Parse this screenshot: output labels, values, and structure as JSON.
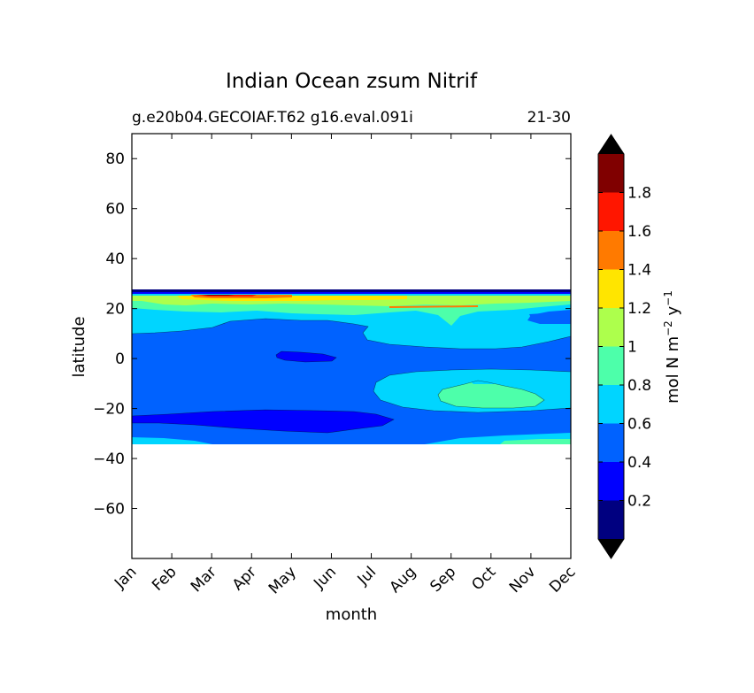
{
  "chart_data": {
    "type": "contourf",
    "title": "Indian Ocean zsum Nitrif",
    "subtitle_left": "g.e20b04.GECOIAF.T62 g16.eval.091i",
    "subtitle_right": "21-30",
    "xlabel": "month",
    "ylabel": "latitude",
    "x_categories": [
      "Jan",
      "Feb",
      "Mar",
      "Apr",
      "May",
      "Jun",
      "Jul",
      "Aug",
      "Sep",
      "Oct",
      "Nov",
      "Dec"
    ],
    "y_ticks": [
      80,
      60,
      40,
      20,
      0,
      -20,
      -40,
      -60
    ],
    "y_tick_labels": [
      "80",
      "60",
      "40",
      "20",
      "0",
      "−20",
      "−40",
      "−60"
    ],
    "ylim": [
      -80,
      90
    ],
    "data_lat_range": [
      -34,
      27
    ],
    "colorbar": {
      "label_main": "mol N m",
      "label_exp1": "−2",
      "label_mid": " y",
      "label_exp2": "−1",
      "levels": [
        0,
        0.2,
        0.4,
        0.6,
        0.8,
        1.0,
        1.2,
        1.4,
        1.6,
        1.8,
        2.0
      ],
      "tick_values": [
        0.2,
        0.4,
        0.6,
        0.8,
        1.0,
        1.2,
        1.4,
        1.6,
        1.8
      ],
      "tick_labels": [
        "0.2",
        "0.4",
        "0.6",
        "0.8",
        "1",
        "1.2",
        "1.4",
        "1.6",
        "1.8"
      ],
      "colors": [
        "#000080",
        "#0000ff",
        "#0062ff",
        "#00d5ff",
        "#4dffaa",
        "#adff4c",
        "#ffe500",
        "#ff7a00",
        "#ff1600",
        "#800000"
      ],
      "extend": "both",
      "under_color": "#000000",
      "over_color": "#000000"
    }
  }
}
